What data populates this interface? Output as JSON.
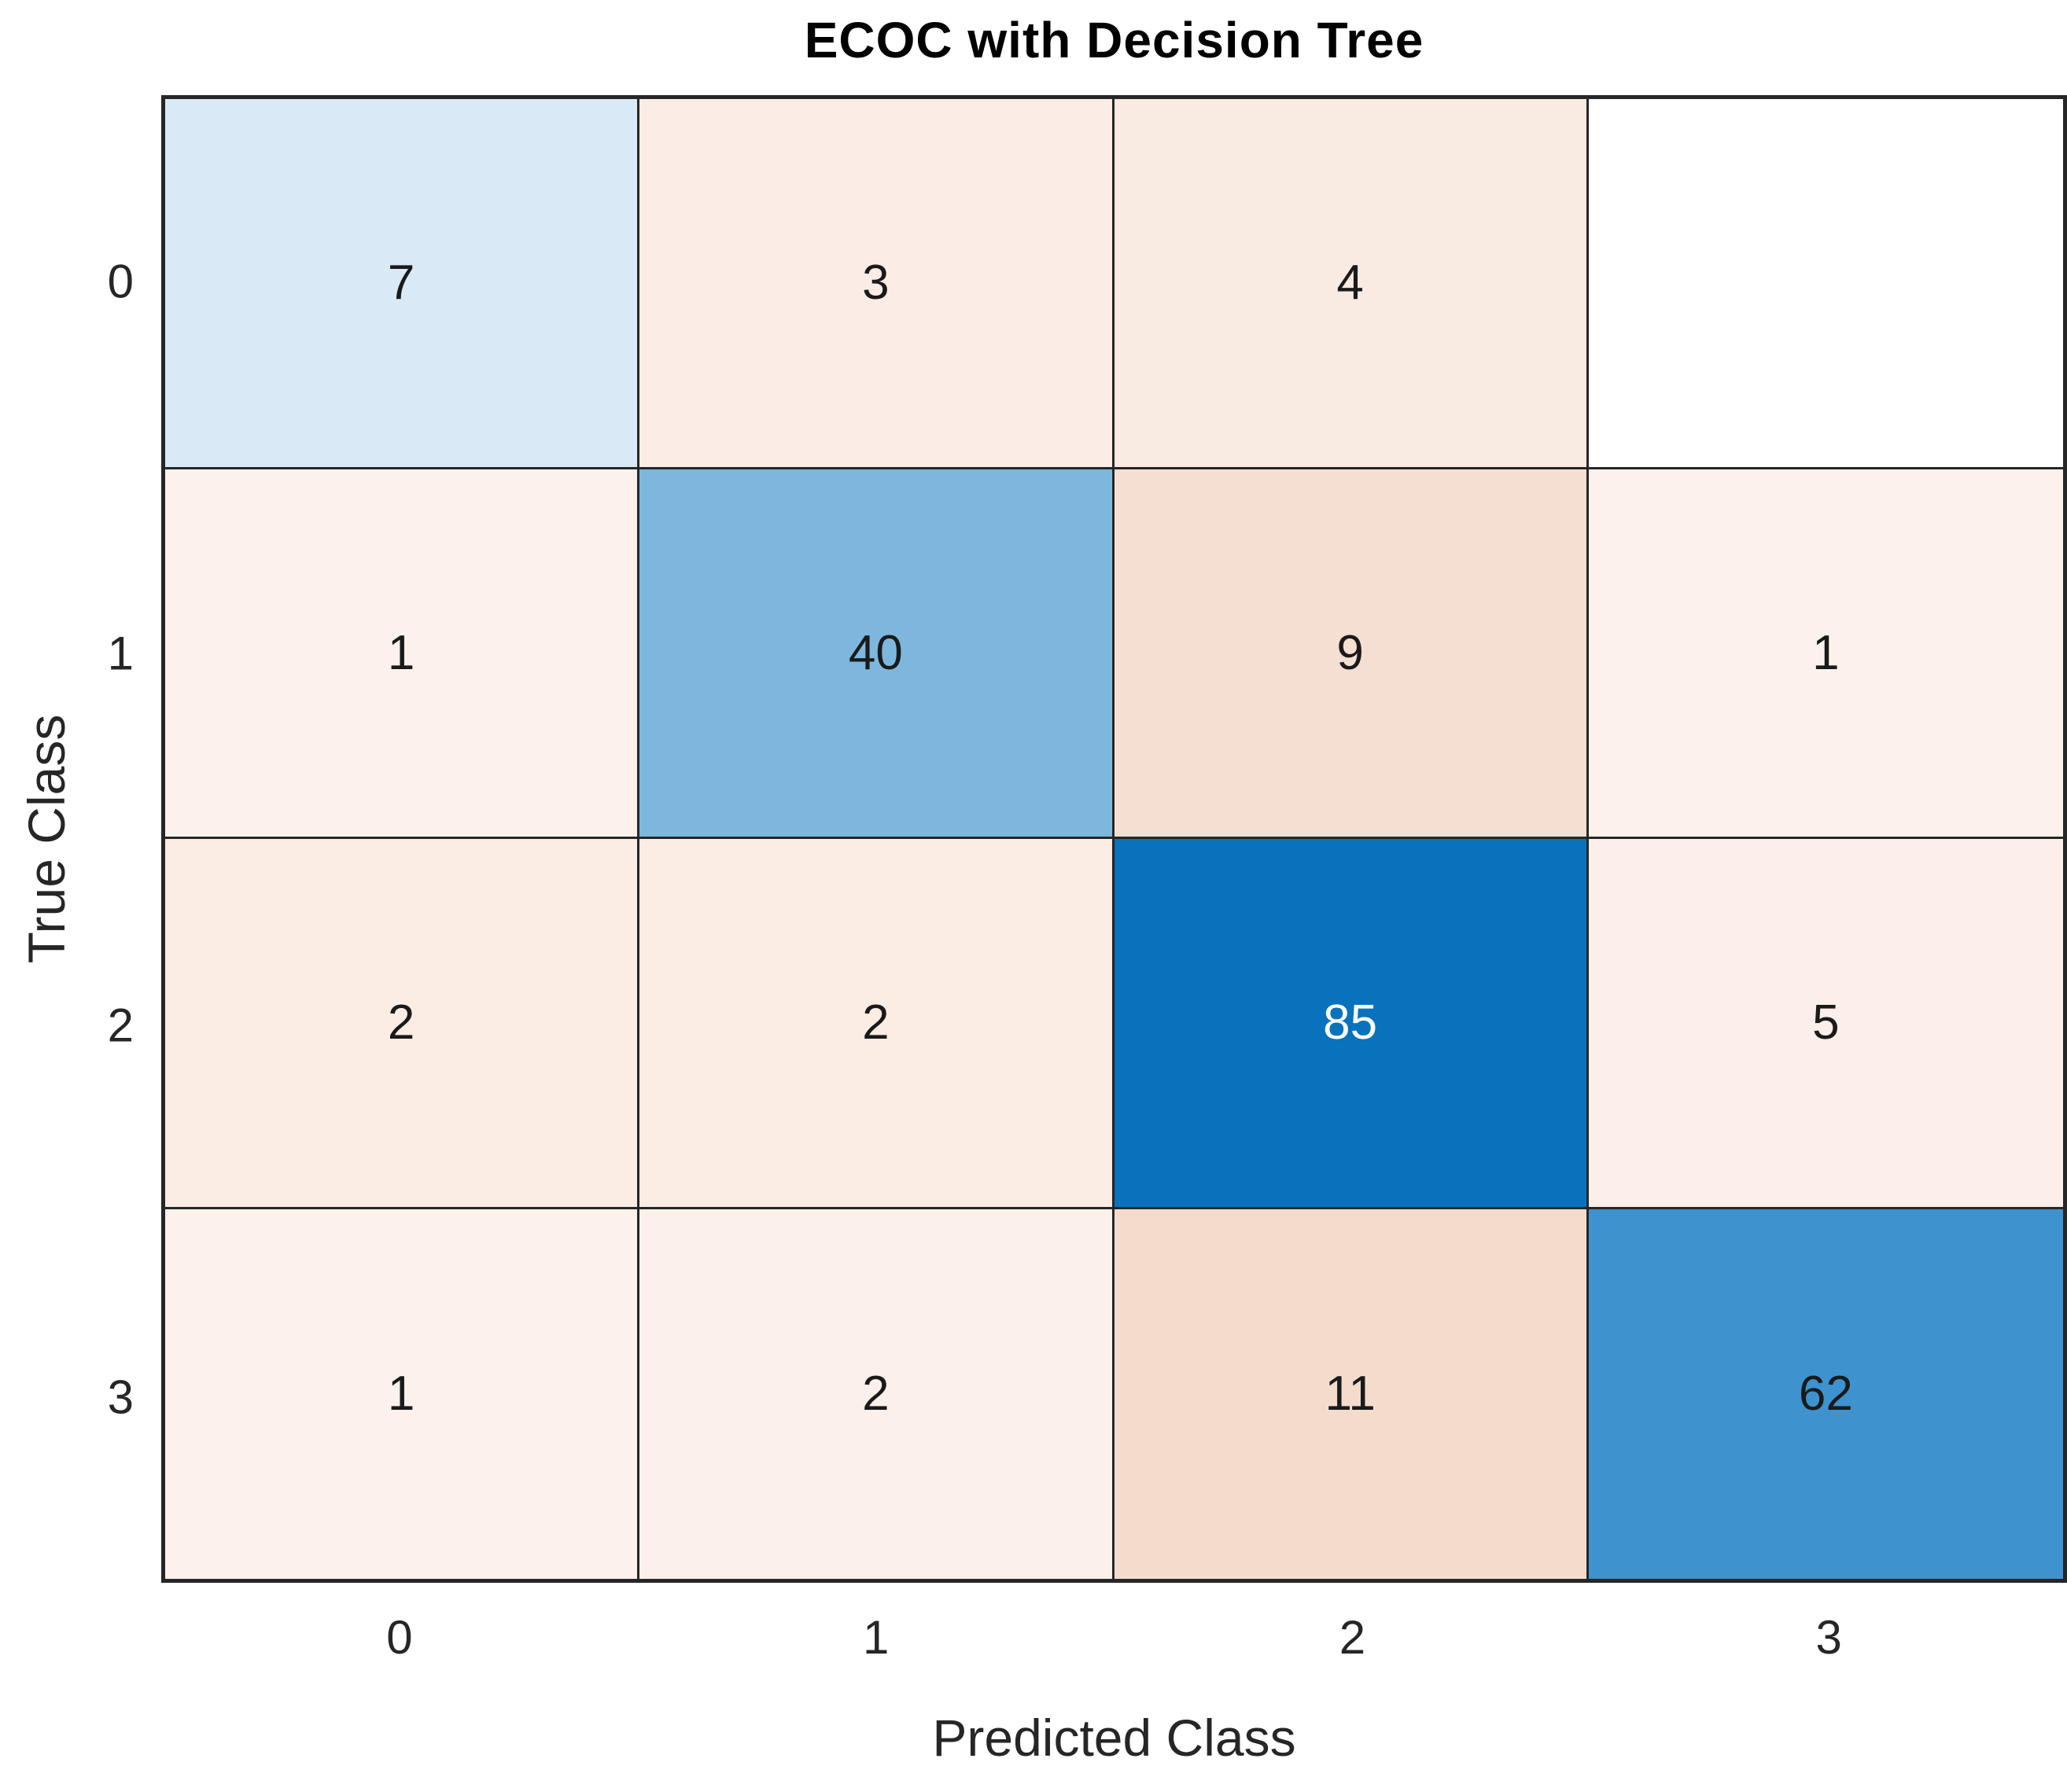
{
  "chart_data": {
    "type": "heatmap",
    "subtype": "confusion-matrix",
    "title": "ECOC with Decision Tree",
    "xlabel": "Predicted Class",
    "ylabel": "True Class",
    "x_tick_labels": [
      "0",
      "1",
      "2",
      "3"
    ],
    "y_tick_labels": [
      "0",
      "1",
      "2",
      "3"
    ],
    "matrix": [
      [
        7,
        3,
        4,
        null
      ],
      [
        1,
        40,
        9,
        1
      ],
      [
        2,
        2,
        85,
        5
      ],
      [
        1,
        2,
        11,
        62
      ]
    ],
    "cell_colors": [
      [
        "#d9e9f6",
        "#fbede6",
        "#f9eae2",
        "#ffffff"
      ],
      [
        "#fdf1ec",
        "#7db7dd",
        "#f5dfd3",
        "#fdf1ec"
      ],
      [
        "#fbece4",
        "#fbece4",
        "#0872bd",
        "#fceee8"
      ],
      [
        "#fdf1ec",
        "#fcf0ea",
        "#f4dccd",
        "#3e92ce"
      ]
    ],
    "cell_text_colors": [
      [
        "#1a1a1a",
        "#1a1a1a",
        "#1a1a1a",
        "#1a1a1a"
      ],
      [
        "#1a1a1a",
        "#1a1a1a",
        "#1a1a1a",
        "#1a1a1a"
      ],
      [
        "#1a1a1a",
        "#1a1a1a",
        "#ffffff",
        "#1a1a1a"
      ],
      [
        "#1a1a1a",
        "#1a1a1a",
        "#1a1a1a",
        "#1a1a1a"
      ]
    ],
    "layout": {
      "grid_line_color": "#262626",
      "background_color": "#ffffff",
      "diagonal_accent_color": "#0872bd",
      "legend": "none"
    }
  }
}
